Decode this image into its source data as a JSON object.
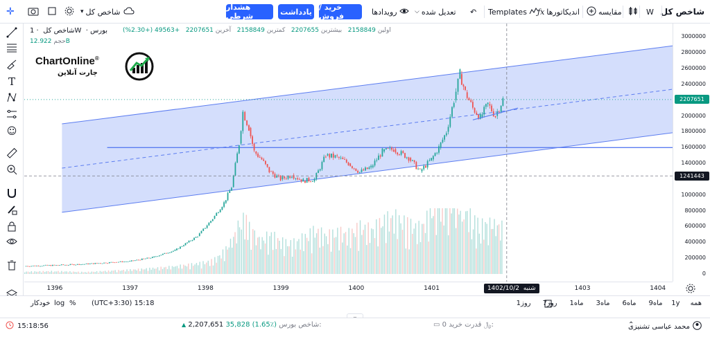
{
  "toolbar": {
    "symbol": "شاخص کل",
    "interval": "W",
    "compare_label": "مقایسه",
    "indicators_label": "اندیکاتورها",
    "templates_label": "Templates",
    "undo_label": "تعدیل شده",
    "events_label": "رویدادها",
    "trade_button": "خرید / فروش",
    "note_button": "یادداشت",
    "alert_button": "هشدار شرطی",
    "left_symbol": "شاخص کل"
  },
  "legend": {
    "name": "شاخص کل",
    "interval": "1W",
    "exchange": "بورس",
    "open_label": "اولین",
    "open": "2158849",
    "high_label": "بیشترین",
    "high": "2207655",
    "low_label": "کمترین",
    "low": "2158849",
    "close_label": "آخرین",
    "close": "2207651",
    "change": "+49563 (+2.30%)",
    "volume_label": "حجم",
    "volume": "12.922B"
  },
  "logo": {
    "title": "ChartOnline",
    "registered": "®",
    "subtitle": "چارت آنلاین"
  },
  "price_axis": {
    "ticks": [
      "3000000",
      "2800000",
      "2600000",
      "2400000",
      "2207651",
      "2000000",
      "1800000",
      "1600000",
      "1400000",
      "1241443",
      "1000000",
      "800000",
      "600000",
      "400000",
      "200000",
      "0"
    ],
    "current_price": "2207651",
    "crosshair_price": "1241443"
  },
  "time_axis": {
    "ticks": [
      "1396",
      "1397",
      "1398",
      "1399",
      "1400",
      "1401",
      "1403",
      "1404"
    ],
    "crosshair_date": "1402/10/2",
    "crosshair_day": "شنبه"
  },
  "periods": [
    "همه",
    "1y",
    "9ماه",
    "6ماه",
    "3ماه",
    "1ماه",
    "7روز",
    "1روز"
  ],
  "bottom_options": {
    "timezone": "(UTC+3:30) 15:18",
    "percent": "%",
    "log": "log",
    "auto": "خودکار"
  },
  "statusbar": {
    "user": "محمد عباسی تشنیزی",
    "buying_power_label": "قدرت خرید:",
    "buying_power": "0 ﷼",
    "index_label": "شاخص بورس:",
    "index_value": "2,207,651",
    "index_change": "35,828 (1.65٪)",
    "clock": "15:18:56"
  },
  "colors": {
    "accent": "#2962ff",
    "up": "#26a69a",
    "down": "#ef5350",
    "channel_fill": "#c5d3fb",
    "channel_line": "#5b7cf0",
    "price_label": "#089981",
    "crosshair_label": "#131722"
  },
  "chart_data": {
    "type": "candlestick",
    "title": "",
    "x_range": [
      1395.6,
      1404.2
    ],
    "y_range": [
      0,
      3100000
    ],
    "series": [
      {
        "name": "",
        "points": [
          [
            1395.6,
            100000
          ],
          [
            1396.0,
            110000
          ],
          [
            1396.4,
            125000
          ],
          [
            1396.8,
            150000
          ],
          [
            1397.0,
            160000
          ],
          [
            1397.3,
            210000
          ],
          [
            1397.6,
            300000
          ],
          [
            1397.9,
            480000
          ],
          [
            1398.1,
            700000
          ],
          [
            1398.25,
            900000
          ],
          [
            1398.35,
            1100000
          ],
          [
            1398.45,
            1650000
          ],
          [
            1398.5,
            2050000
          ],
          [
            1398.58,
            1850000
          ],
          [
            1398.65,
            1550000
          ],
          [
            1398.75,
            1450000
          ],
          [
            1398.85,
            1300000
          ],
          [
            1399.0,
            1200000
          ],
          [
            1399.15,
            1250000
          ],
          [
            1399.3,
            1180000
          ],
          [
            1399.45,
            1200000
          ],
          [
            1399.6,
            1500000
          ],
          [
            1399.75,
            1480000
          ],
          [
            1399.9,
            1400000
          ],
          [
            1400.05,
            1290000
          ],
          [
            1400.2,
            1350000
          ],
          [
            1400.35,
            1550000
          ],
          [
            1400.5,
            1580000
          ],
          [
            1400.7,
            1470000
          ],
          [
            1400.85,
            1300000
          ],
          [
            1401.0,
            1450000
          ],
          [
            1401.1,
            1600000
          ],
          [
            1401.2,
            1800000
          ],
          [
            1401.3,
            2200000
          ],
          [
            1401.38,
            2530000
          ],
          [
            1401.45,
            2300000
          ],
          [
            1401.55,
            2100000
          ],
          [
            1401.65,
            1980000
          ],
          [
            1401.75,
            2150000
          ],
          [
            1401.85,
            2000000
          ],
          [
            1401.95,
            2207651
          ]
        ]
      }
    ],
    "volume": [
      12,
      15,
      10,
      18,
      22,
      30,
      40,
      55,
      70,
      120,
      180,
      260,
      300,
      240,
      200,
      180,
      210,
      170,
      160,
      190,
      230,
      200,
      220,
      210,
      250,
      230,
      280,
      300,
      260,
      240,
      330,
      380,
      420,
      360,
      300,
      330,
      280,
      250,
      270,
      260,
      240
    ],
    "channel": {
      "upper": [
        [
          1396.1,
          1900000
        ],
        [
          1404.3,
          2900000
        ]
      ],
      "lower": [
        [
          1396.1,
          780000
        ],
        [
          1404.3,
          1800000
        ]
      ],
      "mid": [
        [
          1396.1,
          1340000
        ],
        [
          1404.3,
          2350000
        ]
      ]
    },
    "horizontal_line": 1600000,
    "current_price": 2207651,
    "crosshair": {
      "x": 1402.0,
      "y": 1241443
    }
  }
}
